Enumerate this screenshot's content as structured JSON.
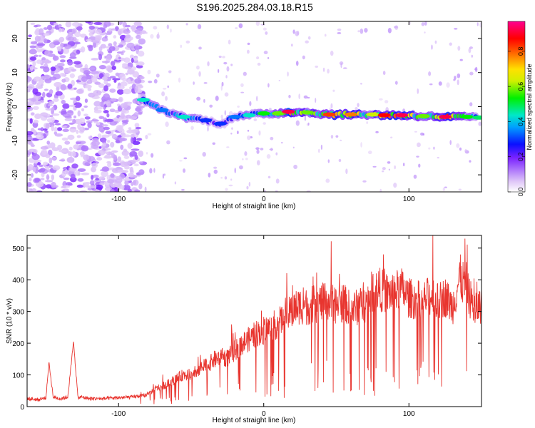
{
  "title": "S196.2025.284.03.18.R15",
  "chart_data": [
    {
      "type": "heatmap",
      "name": "spectrogram",
      "xlabel": "Height of straight line (km)",
      "ylabel": "Frequency (Hz)",
      "xlim": [
        -163,
        150
      ],
      "ylim": [
        -25,
        25
      ],
      "xticks": [
        -100,
        0,
        100
      ],
      "yticks": [
        -20,
        -10,
        0,
        10,
        20
      ],
      "xtick_labels": [
        "-100",
        "0",
        "100"
      ],
      "ytick_labels": [
        "-20",
        "-10",
        "0",
        "10",
        "20"
      ],
      "colorbar": {
        "label": "Normalized spectral amplitude",
        "range": [
          0,
          0.97
        ],
        "ticks": [
          0,
          0.2,
          0.4,
          0.6,
          0.8
        ],
        "tick_labels": [
          "0.0",
          "0.2",
          "0.4",
          "0.6",
          "0.8"
        ]
      },
      "ridge": [
        {
          "x": -83,
          "freq": 2,
          "amp": 0.45
        },
        {
          "x": -70,
          "freq": -1,
          "amp": 0.35
        },
        {
          "x": -55,
          "freq": -3,
          "amp": 0.45
        },
        {
          "x": -40,
          "freq": -4,
          "amp": 0.3
        },
        {
          "x": -30,
          "freq": -5,
          "amp": 0.3
        },
        {
          "x": -20,
          "freq": -3,
          "amp": 0.35
        },
        {
          "x": -10,
          "freq": -2.5,
          "amp": 0.45
        },
        {
          "x": 0,
          "freq": -2,
          "amp": 0.55
        },
        {
          "x": 10,
          "freq": -2,
          "amp": 0.6
        },
        {
          "x": 17,
          "freq": -1.5,
          "amp": 0.95
        },
        {
          "x": 30,
          "freq": -1.7,
          "amp": 0.6
        },
        {
          "x": 45,
          "freq": -2.3,
          "amp": 0.85
        },
        {
          "x": 60,
          "freq": -2.3,
          "amp": 0.8
        },
        {
          "x": 75,
          "freq": -2.3,
          "amp": 0.65
        },
        {
          "x": 83,
          "freq": -2.5,
          "amp": 0.9
        },
        {
          "x": 95,
          "freq": -2.5,
          "amp": 0.95
        },
        {
          "x": 110,
          "freq": -2.8,
          "amp": 0.6
        },
        {
          "x": 125,
          "freq": -3,
          "amp": 0.95
        },
        {
          "x": 140,
          "freq": -3,
          "amp": 0.55
        },
        {
          "x": 148,
          "freq": -3.2,
          "amp": 0.5
        }
      ]
    },
    {
      "type": "line",
      "name": "snr",
      "xlabel": "Height of straight line (km)",
      "ylabel": "SNR (10 * v/v)",
      "xlim": [
        -163,
        150
      ],
      "ylim": [
        0,
        540
      ],
      "xticks": [
        -100,
        0,
        100
      ],
      "yticks": [
        0,
        100,
        200,
        300,
        400,
        500
      ],
      "xtick_labels": [
        "-100",
        "0",
        "100"
      ],
      "ytick_labels": [
        "0",
        "100",
        "200",
        "300",
        "400",
        "500"
      ],
      "color": "#e8352f",
      "x": [
        -163,
        -155,
        -150,
        -148,
        -145,
        -140,
        -135,
        -131,
        -128,
        -125,
        -120,
        -110,
        -100,
        -90,
        -85,
        -80,
        -75,
        -70,
        -65,
        -60,
        -55,
        -50,
        -45,
        -40,
        -35,
        -30,
        -25,
        -20,
        -15,
        -10,
        -5,
        0,
        5,
        10,
        15,
        20,
        25,
        30,
        35,
        40,
        45,
        50,
        55,
        60,
        65,
        70,
        75,
        80,
        85,
        90,
        95,
        100,
        105,
        110,
        115,
        120,
        125,
        130,
        135,
        140,
        145,
        150
      ],
      "values": [
        25,
        22,
        28,
        140,
        30,
        25,
        30,
        205,
        28,
        30,
        25,
        25,
        28,
        30,
        35,
        40,
        60,
        70,
        80,
        95,
        110,
        105,
        125,
        140,
        155,
        170,
        165,
        190,
        215,
        230,
        250,
        260,
        270,
        285,
        300,
        330,
        345,
        340,
        350,
        355,
        360,
        345,
        355,
        330,
        340,
        350,
        395,
        400,
        385,
        390,
        400,
        370,
        365,
        360,
        380,
        355,
        375,
        340,
        440,
        400,
        330,
        350
      ]
    }
  ]
}
